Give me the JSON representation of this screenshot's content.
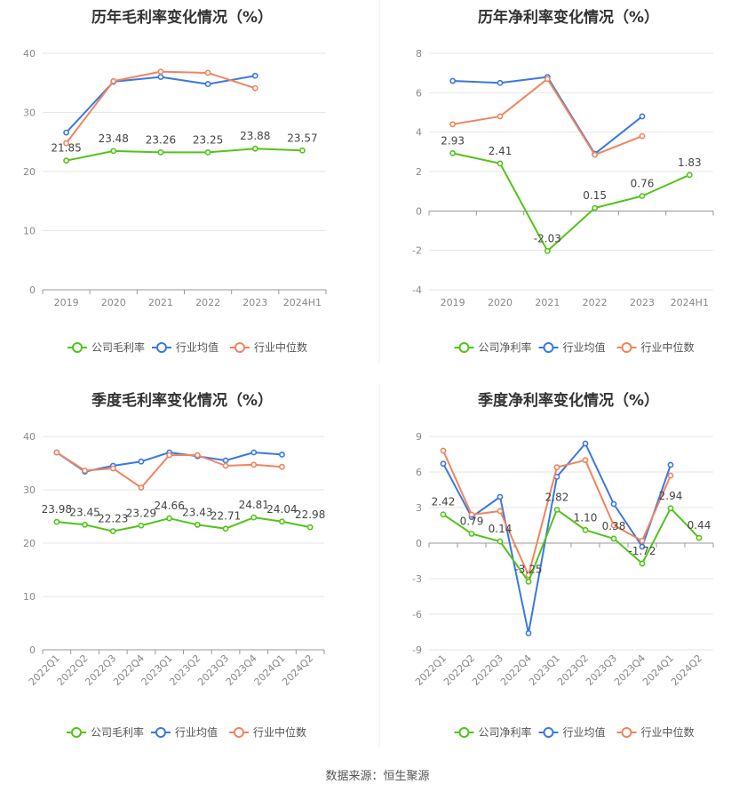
{
  "source": "数据来源：恒生聚源",
  "legend_labels": {
    "company_gross": "公司毛利率",
    "company_net": "公司净利率",
    "industry_avg": "行业均值",
    "industry_median": "行业中位数"
  },
  "colors": {
    "company": "#52c41a",
    "industry_avg": "#3a78e0",
    "industry_median": "#f0845f",
    "axis_text": "#888888",
    "grid": "#e6e6e6",
    "title": "#333333",
    "label": "#444444"
  },
  "chart_data": [
    {
      "id": "annual-gross",
      "type": "line",
      "title": "历年毛利率变化情况（%）",
      "categories": [
        "2019",
        "2020",
        "2021",
        "2022",
        "2023",
        "2024H1"
      ],
      "ylim": [
        0,
        40
      ],
      "yticks": [
        0,
        10,
        20,
        30,
        40
      ],
      "x_tick_rotation": 0,
      "series": [
        {
          "name": "公司毛利率",
          "color_key": "company",
          "values": [
            21.85,
            23.48,
            23.26,
            23.25,
            23.88,
            23.57
          ],
          "labels": [
            "21.85",
            "23.48",
            "23.26",
            "23.25",
            "23.88",
            "23.57"
          ]
        },
        {
          "name": "行业均值",
          "color_key": "industry_avg",
          "values": [
            26.6,
            35.2,
            36.0,
            34.8,
            36.2,
            null
          ]
        },
        {
          "name": "行业中位数",
          "color_key": "industry_median",
          "values": [
            24.8,
            35.3,
            36.9,
            36.7,
            34.1,
            null
          ]
        }
      ]
    },
    {
      "id": "annual-net",
      "type": "line",
      "title": "历年净利率变化情况（%）",
      "categories": [
        "2019",
        "2020",
        "2021",
        "2022",
        "2023",
        "2024H1"
      ],
      "ylim": [
        -4,
        8
      ],
      "yticks": [
        -4,
        -2,
        0,
        2,
        4,
        6,
        8
      ],
      "x_tick_rotation": 0,
      "series": [
        {
          "name": "公司净利率",
          "color_key": "company",
          "values": [
            2.93,
            2.41,
            -2.03,
            0.15,
            0.76,
            1.83
          ],
          "labels": [
            "2.93",
            "2.41",
            "-2.03",
            "0.15",
            "0.76",
            "1.83"
          ]
        },
        {
          "name": "行业均值",
          "color_key": "industry_avg",
          "values": [
            6.6,
            6.5,
            6.8,
            2.9,
            4.8,
            null
          ]
        },
        {
          "name": "行业中位数",
          "color_key": "industry_median",
          "values": [
            4.4,
            4.8,
            6.7,
            2.85,
            3.8,
            null
          ]
        }
      ]
    },
    {
      "id": "quarterly-gross",
      "type": "line",
      "title": "季度毛利率变化情况（%）",
      "categories": [
        "2022Q1",
        "2022Q2",
        "2022Q3",
        "2022Q4",
        "2023Q1",
        "2023Q2",
        "2023Q3",
        "2023Q4",
        "2024Q1",
        "2024Q2"
      ],
      "ylim": [
        0,
        40
      ],
      "yticks": [
        0,
        10,
        20,
        30,
        40
      ],
      "x_tick_rotation": -45,
      "series": [
        {
          "name": "公司毛利率",
          "color_key": "company",
          "values": [
            23.98,
            23.45,
            22.23,
            23.29,
            24.66,
            23.43,
            22.71,
            24.81,
            24.04,
            22.98
          ],
          "labels": [
            "23.98",
            "23.45",
            "22.23",
            "23.29",
            "24.66",
            "23.43",
            "22.71",
            "24.81",
            "24.04",
            "22.98"
          ]
        },
        {
          "name": "行业均值",
          "color_key": "industry_avg",
          "values": [
            37.0,
            33.4,
            34.5,
            35.3,
            37.0,
            36.3,
            35.5,
            37.0,
            36.6,
            null
          ]
        },
        {
          "name": "行业中位数",
          "color_key": "industry_median",
          "values": [
            37.0,
            33.6,
            34.0,
            30.4,
            36.5,
            36.5,
            34.5,
            34.7,
            34.3,
            null
          ]
        }
      ]
    },
    {
      "id": "quarterly-net",
      "type": "line",
      "title": "季度净利率变化情况（%）",
      "categories": [
        "2022Q1",
        "2022Q2",
        "2022Q3",
        "2022Q4",
        "2023Q1",
        "2023Q2",
        "2023Q3",
        "2023Q4",
        "2024Q1",
        "2024Q2"
      ],
      "ylim": [
        -9,
        9
      ],
      "yticks": [
        -9,
        -6,
        -3,
        0,
        3,
        6,
        9
      ],
      "x_tick_rotation": -45,
      "series": [
        {
          "name": "公司净利率",
          "color_key": "company",
          "values": [
            2.42,
            0.79,
            0.14,
            -3.25,
            2.82,
            1.1,
            0.38,
            -1.72,
            2.94,
            0.44
          ],
          "labels": [
            "2.42",
            "0.79",
            "0.14",
            "-3.25",
            "2.82",
            "1.10",
            "0.38",
            "-1.72",
            "2.94",
            "0.44"
          ]
        },
        {
          "name": "行业均值",
          "color_key": "industry_avg",
          "values": [
            6.7,
            2.2,
            3.9,
            -7.6,
            5.6,
            8.4,
            3.3,
            -0.3,
            6.6,
            null
          ]
        },
        {
          "name": "行业中位数",
          "color_key": "industry_median",
          "values": [
            7.8,
            2.4,
            2.7,
            -2.7,
            6.4,
            7.0,
            1.5,
            0.2,
            5.7,
            null
          ]
        }
      ]
    }
  ]
}
